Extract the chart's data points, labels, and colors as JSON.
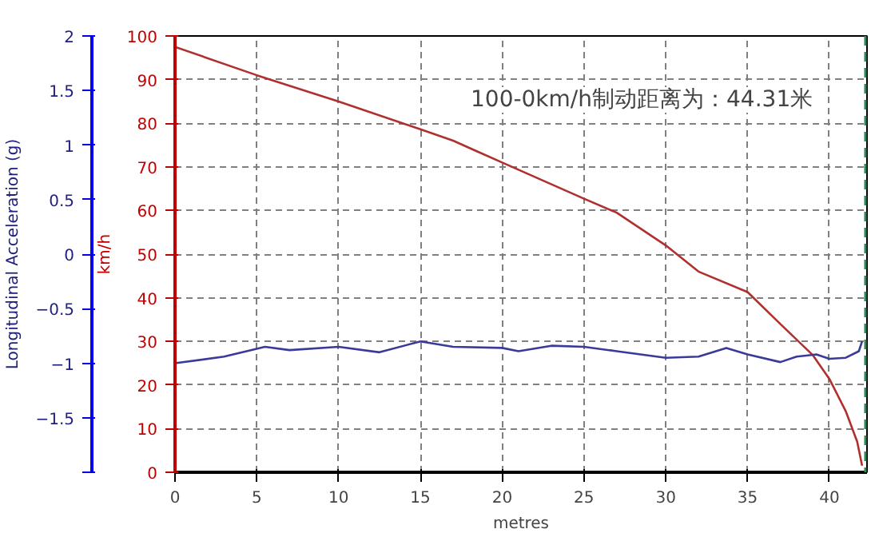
{
  "chart_data": {
    "type": "line",
    "xlabel": "metres",
    "ylabel": "Longitudinal Acceleration (g)",
    "y2label": "km/h",
    "annotations": [
      "100-0km/h制动距离为：44.31米"
    ],
    "xlim": [
      0,
      42.3
    ],
    "xticks": [
      0,
      5,
      10,
      15,
      20,
      25,
      30,
      35,
      40
    ],
    "ylim": [
      -2,
      2
    ],
    "yticks": [
      2,
      1.5,
      1,
      0.5,
      0,
      -0.5,
      -1,
      -1.5,
      {
        "value": -2,
        "label": null
      }
    ],
    "y2lim": [
      0,
      100
    ],
    "y2ticks": [
      0,
      10,
      20,
      30,
      40,
      50,
      60,
      70,
      80,
      90,
      100
    ],
    "grid": true,
    "line_style": "solid",
    "marker": "none",
    "ref_lines": [
      {
        "axis": "x",
        "value": 42.2,
        "color": "#2e8b57",
        "line_style": "dashed"
      }
    ],
    "series": [
      {
        "color": "#b03030",
        "axis": "y2",
        "x": [
          0,
          5,
          10,
          15,
          17,
          18.5,
          20,
          25,
          27,
          30,
          32,
          35,
          37,
          39,
          40,
          41,
          41.7,
          42
        ],
        "values": [
          97.5,
          91,
          85,
          78.6,
          76,
          73.5,
          71,
          62.7,
          59.5,
          52,
          46,
          41.3,
          34,
          26.8,
          21.4,
          14,
          7,
          1.5
        ]
      },
      {
        "color": "#3a3a9a",
        "x": [
          0,
          3,
          5.5,
          7,
          10,
          12.5,
          15,
          17,
          20,
          21,
          23,
          25,
          27,
          30,
          32,
          33.7,
          35,
          37,
          38,
          39.2,
          40,
          41,
          41.8,
          42
        ],
        "values": [
          -1.0,
          -0.94,
          -0.85,
          -0.88,
          -0.85,
          -0.9,
          -0.8,
          -0.85,
          -0.86,
          -0.89,
          -0.84,
          -0.85,
          -0.89,
          -0.95,
          -0.94,
          -0.86,
          -0.92,
          -0.99,
          -0.94,
          -0.92,
          -0.96,
          -0.95,
          -0.89,
          -0.8
        ]
      }
    ]
  }
}
